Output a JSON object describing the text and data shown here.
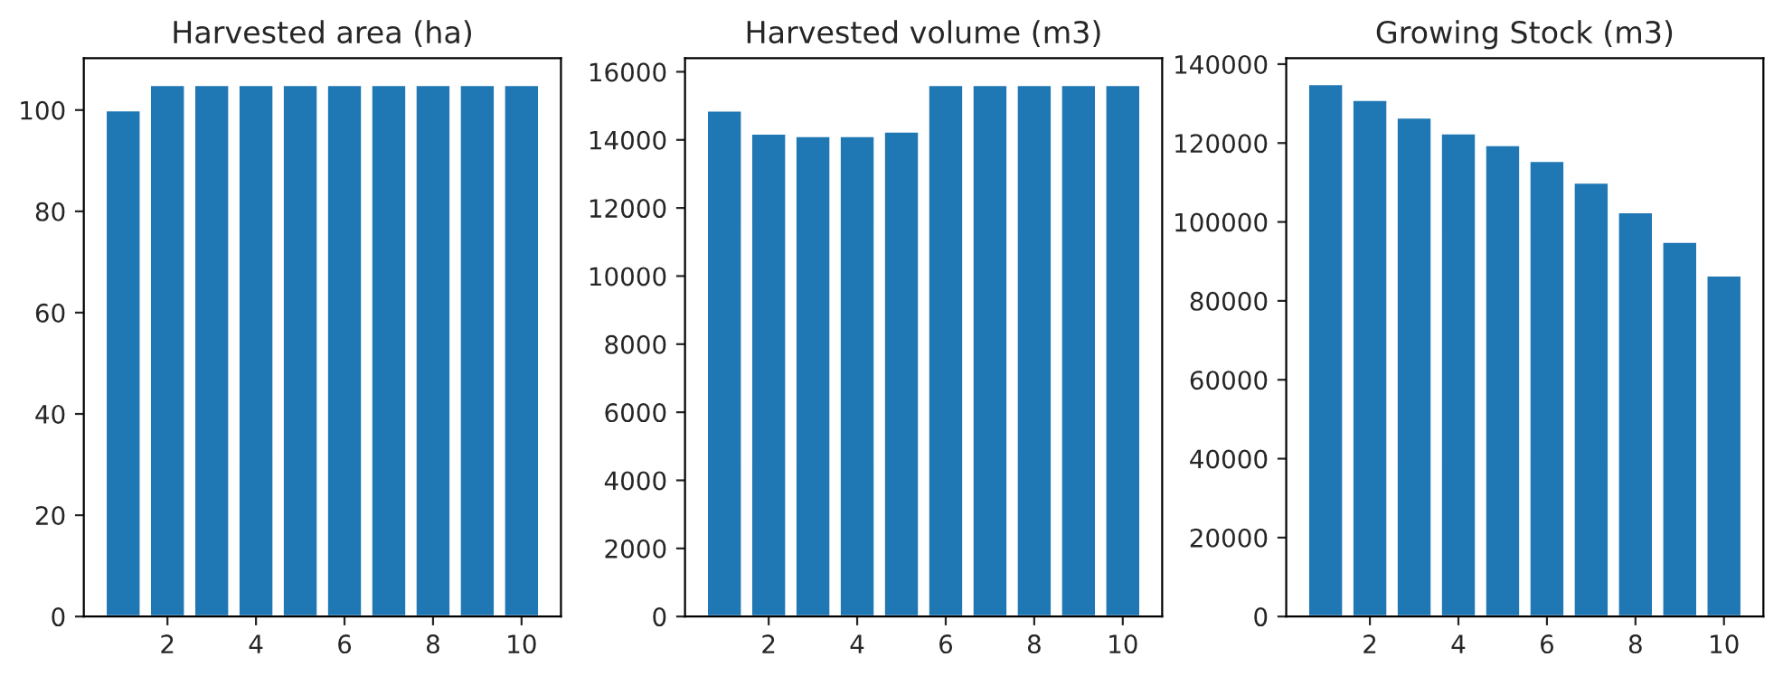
{
  "chart_data": [
    {
      "type": "bar",
      "title": "Harvested area (ha)",
      "x": [
        1,
        2,
        3,
        4,
        5,
        6,
        7,
        8,
        9,
        10
      ],
      "values": [
        100,
        105,
        105,
        105,
        105,
        105,
        105,
        105,
        105,
        105
      ],
      "color": "#1f77b4",
      "xlim": [
        0.11,
        10.89
      ],
      "xticks": [
        2,
        4,
        6,
        8,
        10
      ],
      "ylim": [
        0,
        110.25
      ],
      "yticks": [
        0,
        20,
        40,
        60,
        80,
        100
      ]
    },
    {
      "type": "bar",
      "title": "Harvested volume (m3)",
      "x": [
        1,
        2,
        3,
        4,
        5,
        6,
        7,
        8,
        9,
        10
      ],
      "values": [
        14870,
        14190,
        14120,
        14120,
        14250,
        15620,
        15620,
        15620,
        15620,
        15620
      ],
      "color": "#1f77b4",
      "xlim": [
        0.11,
        10.89
      ],
      "xticks": [
        2,
        4,
        6,
        8,
        10
      ],
      "ylim": [
        0,
        16401
      ],
      "yticks": [
        0,
        2000,
        4000,
        6000,
        8000,
        10000,
        12000,
        14000,
        16000
      ]
    },
    {
      "type": "bar",
      "title": "Growing Stock (m3)",
      "x": [
        1,
        2,
        3,
        4,
        5,
        6,
        7,
        8,
        9,
        10
      ],
      "values": [
        135000,
        131000,
        126500,
        122500,
        119500,
        115500,
        110000,
        102500,
        95000,
        86500
      ],
      "color": "#1f77b4",
      "xlim": [
        0.11,
        10.89
      ],
      "xticks": [
        2,
        4,
        6,
        8,
        10
      ],
      "ylim": [
        0,
        141519
      ],
      "yticks": [
        0,
        20000,
        40000,
        60000,
        80000,
        100000,
        120000,
        140000
      ]
    }
  ]
}
